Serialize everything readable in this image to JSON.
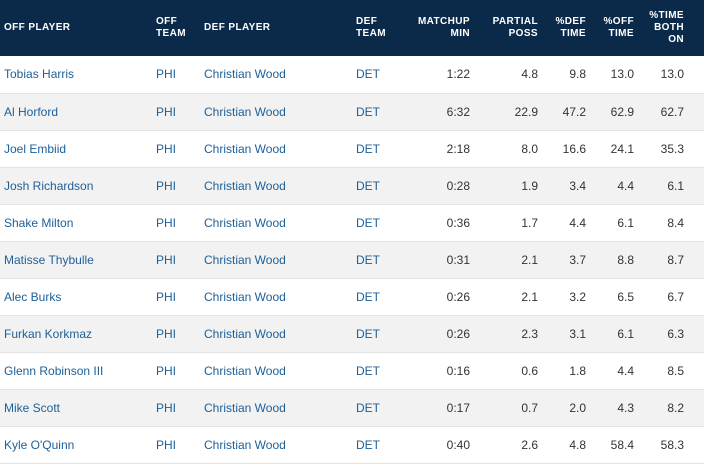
{
  "headers": {
    "off_player": "OFF PLAYER",
    "off_team": "OFF TEAM",
    "def_player": "DEF PLAYER",
    "def_team": "DEF TEAM",
    "matchup_min": "MATCHUP MIN",
    "partial_poss": "PARTIAL POSS",
    "def_time": "%DEF TIME",
    "off_time": "%OFF TIME",
    "time_both_on": "%TIME BOTH ON"
  },
  "rows": [
    {
      "off_player": "Tobias Harris",
      "off_team": "PHI",
      "def_player": "Christian Wood",
      "def_team": "DET",
      "matchup_min": "1:22",
      "partial_poss": "4.8",
      "def_time": "9.8",
      "off_time": "13.0",
      "time_both_on": "13.0"
    },
    {
      "off_player": "Al Horford",
      "off_team": "PHI",
      "def_player": "Christian Wood",
      "def_team": "DET",
      "matchup_min": "6:32",
      "partial_poss": "22.9",
      "def_time": "47.2",
      "off_time": "62.9",
      "time_both_on": "62.7"
    },
    {
      "off_player": "Joel Embiid",
      "off_team": "PHI",
      "def_player": "Christian Wood",
      "def_team": "DET",
      "matchup_min": "2:18",
      "partial_poss": "8.0",
      "def_time": "16.6",
      "off_time": "24.1",
      "time_both_on": "35.3"
    },
    {
      "off_player": "Josh Richardson",
      "off_team": "PHI",
      "def_player": "Christian Wood",
      "def_team": "DET",
      "matchup_min": "0:28",
      "partial_poss": "1.9",
      "def_time": "3.4",
      "off_time": "4.4",
      "time_both_on": "6.1"
    },
    {
      "off_player": "Shake Milton",
      "off_team": "PHI",
      "def_player": "Christian Wood",
      "def_team": "DET",
      "matchup_min": "0:36",
      "partial_poss": "1.7",
      "def_time": "4.4",
      "off_time": "6.1",
      "time_both_on": "8.4"
    },
    {
      "off_player": "Matisse Thybulle",
      "off_team": "PHI",
      "def_player": "Christian Wood",
      "def_team": "DET",
      "matchup_min": "0:31",
      "partial_poss": "2.1",
      "def_time": "3.7",
      "off_time": "8.8",
      "time_both_on": "8.7"
    },
    {
      "off_player": "Alec Burks",
      "off_team": "PHI",
      "def_player": "Christian Wood",
      "def_team": "DET",
      "matchup_min": "0:26",
      "partial_poss": "2.1",
      "def_time": "3.2",
      "off_time": "6.5",
      "time_both_on": "6.7"
    },
    {
      "off_player": "Furkan Korkmaz",
      "off_team": "PHI",
      "def_player": "Christian Wood",
      "def_team": "DET",
      "matchup_min": "0:26",
      "partial_poss": "2.3",
      "def_time": "3.1",
      "off_time": "6.1",
      "time_both_on": "6.3"
    },
    {
      "off_player": "Glenn Robinson III",
      "off_team": "PHI",
      "def_player": "Christian Wood",
      "def_team": "DET",
      "matchup_min": "0:16",
      "partial_poss": "0.6",
      "def_time": "1.8",
      "off_time": "4.4",
      "time_both_on": "8.5"
    },
    {
      "off_player": "Mike Scott",
      "off_team": "PHI",
      "def_player": "Christian Wood",
      "def_team": "DET",
      "matchup_min": "0:17",
      "partial_poss": "0.7",
      "def_time": "2.0",
      "off_time": "4.3",
      "time_both_on": "8.2"
    },
    {
      "off_player": "Kyle O'Quinn",
      "off_team": "PHI",
      "def_player": "Christian Wood",
      "def_team": "DET",
      "matchup_min": "0:40",
      "partial_poss": "2.6",
      "def_time": "4.8",
      "off_time": "58.4",
      "time_both_on": "58.3"
    }
  ]
}
